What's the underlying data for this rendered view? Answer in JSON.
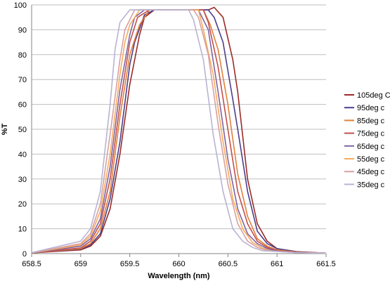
{
  "chart_data": {
    "type": "line",
    "title": "",
    "xlabel": "Wavelength (nm)",
    "ylabel": "%T",
    "xlim": [
      658.5,
      661.5
    ],
    "ylim": [
      0,
      100
    ],
    "x_ticks": [
      "658.5",
      "659",
      "659.5",
      "660",
      "660.5",
      "661",
      "661.5"
    ],
    "y_ticks": [
      "0",
      "10",
      "20",
      "30",
      "40",
      "50",
      "60",
      "70",
      "80",
      "90",
      "100"
    ],
    "grid": "horizontal",
    "legend_position": "right",
    "series": [
      {
        "name": "105deg C",
        "color": "#9b2b27",
        "x": [
          658.5,
          659.0,
          659.1,
          659.2,
          659.3,
          659.4,
          659.5,
          659.6,
          659.65,
          659.75,
          660.0,
          660.3,
          660.36,
          660.45,
          660.55,
          660.6,
          660.7,
          660.8,
          660.9,
          661.0,
          661.2,
          661.5
        ],
        "y": [
          0.3,
          1.5,
          3,
          7,
          18,
          40,
          68,
          88,
          95,
          98,
          98,
          98,
          99,
          95,
          78,
          65,
          30,
          12,
          5,
          2,
          0.8,
          0.2
        ]
      },
      {
        "name": "95deg c",
        "color": "#4b3f8c",
        "x": [
          658.5,
          659.0,
          659.1,
          659.2,
          659.3,
          659.4,
          659.5,
          659.55,
          659.65,
          659.75,
          660.0,
          660.3,
          660.36,
          660.45,
          660.55,
          660.6,
          660.7,
          660.8,
          660.9,
          661.0,
          661.2,
          661.5
        ],
        "y": [
          0.3,
          1.8,
          3.5,
          8,
          22,
          45,
          76,
          85,
          96,
          98,
          98,
          98,
          95,
          85,
          62,
          50,
          25,
          9,
          4,
          2,
          0.7,
          0.2
        ]
      },
      {
        "name": "85deg c",
        "color": "#e1813a",
        "x": [
          658.5,
          659.0,
          659.1,
          659.2,
          659.3,
          659.4,
          659.5,
          659.6,
          659.7,
          660.0,
          660.25,
          660.32,
          660.4,
          660.5,
          660.6,
          660.7,
          660.8,
          660.9,
          661.0,
          661.2,
          661.5
        ],
        "y": [
          0.3,
          2,
          4,
          10,
          25,
          55,
          80,
          92,
          98,
          98,
          98,
          92,
          82,
          60,
          32,
          15,
          6,
          3,
          1.5,
          0.6,
          0.2
        ]
      },
      {
        "name": "75deg c",
        "color": "#c0504d",
        "x": [
          658.5,
          659.0,
          659.1,
          659.2,
          659.3,
          659.4,
          659.5,
          659.58,
          659.7,
          660.0,
          660.25,
          660.3,
          660.4,
          660.5,
          660.6,
          660.7,
          660.8,
          660.9,
          661.0,
          661.2,
          661.5
        ],
        "y": [
          0.3,
          2.3,
          5,
          12,
          30,
          60,
          85,
          95,
          98,
          98,
          98,
          93,
          75,
          50,
          25,
          12,
          5,
          2.5,
          1.2,
          0.5,
          0.2
        ]
      },
      {
        "name": "65deg c",
        "color": "#8064a2",
        "x": [
          658.5,
          659.0,
          659.1,
          659.2,
          659.3,
          659.4,
          659.5,
          659.55,
          659.65,
          660.0,
          660.2,
          660.3,
          660.4,
          660.5,
          660.6,
          660.7,
          660.8,
          660.9,
          661.0,
          661.2,
          661.5
        ],
        "y": [
          0.3,
          3,
          6,
          14,
          35,
          66,
          88,
          95,
          98,
          98,
          98,
          90,
          65,
          38,
          18,
          8,
          4,
          2,
          1,
          0.4,
          0.2
        ]
      },
      {
        "name": "55deg c",
        "color": "#f6ac5c",
        "x": [
          658.5,
          659.0,
          659.1,
          659.2,
          659.3,
          659.4,
          659.45,
          659.5,
          659.6,
          660.0,
          660.2,
          660.25,
          660.35,
          660.45,
          660.55,
          660.65,
          660.75,
          660.85,
          660.95,
          661.2,
          661.5
        ],
        "y": [
          0.3,
          3.5,
          7,
          17,
          40,
          72,
          85,
          92,
          98,
          98,
          98,
          90,
          72,
          45,
          22,
          10,
          4.5,
          2.2,
          1,
          0.4,
          0.2
        ]
      },
      {
        "name": "45deg c",
        "color": "#d9a0a0",
        "x": [
          658.5,
          659.0,
          659.1,
          659.2,
          659.3,
          659.4,
          659.45,
          659.55,
          660.0,
          660.15,
          660.2,
          660.3,
          660.4,
          660.5,
          660.6,
          660.7,
          660.8,
          660.9,
          661.2,
          661.5
        ],
        "y": [
          0.3,
          4,
          8,
          20,
          48,
          78,
          90,
          98,
          98,
          98,
          95,
          80,
          52,
          28,
          12,
          5,
          2.5,
          1.2,
          0.4,
          0.2
        ]
      },
      {
        "name": "35deg c",
        "color": "#b9b3d4",
        "x": [
          658.5,
          659.0,
          659.1,
          659.2,
          659.3,
          659.35,
          659.4,
          659.5,
          660.0,
          660.1,
          660.15,
          660.25,
          660.35,
          660.45,
          660.55,
          660.65,
          660.75,
          660.85,
          661.2,
          661.5
        ],
        "y": [
          0.4,
          5,
          10,
          25,
          60,
          82,
          93,
          98,
          98,
          98,
          94,
          78,
          48,
          25,
          10,
          5,
          2.5,
          1.2,
          0.4,
          0.2
        ]
      }
    ]
  }
}
